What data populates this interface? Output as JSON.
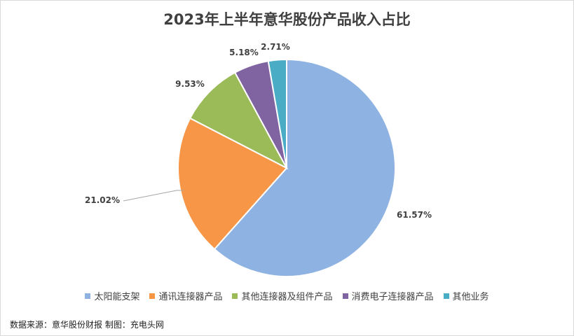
{
  "chart_data": {
    "type": "pie",
    "title": "2023年上半年意华股份产品收入占比",
    "slices": [
      {
        "name": "太阳能支架",
        "value": 61.57,
        "label": "61.57%",
        "color": "#8eb2e2"
      },
      {
        "name": "通讯连接器产品",
        "value": 21.02,
        "label": "21.02%",
        "color": "#f79646"
      },
      {
        "name": "其他连接器及组件产品",
        "value": 9.53,
        "label": "9.53%",
        "color": "#9bbb59"
      },
      {
        "name": "消费电子连接器产品",
        "value": 5.18,
        "label": "5.18%",
        "color": "#8064a2"
      },
      {
        "name": "其他业务",
        "value": 2.71,
        "label": "2.71%",
        "color": "#4bacc6"
      }
    ],
    "legend_position": "bottom"
  },
  "footer": {
    "source": "数据来源：意华股份财报  制图：充电头网"
  }
}
